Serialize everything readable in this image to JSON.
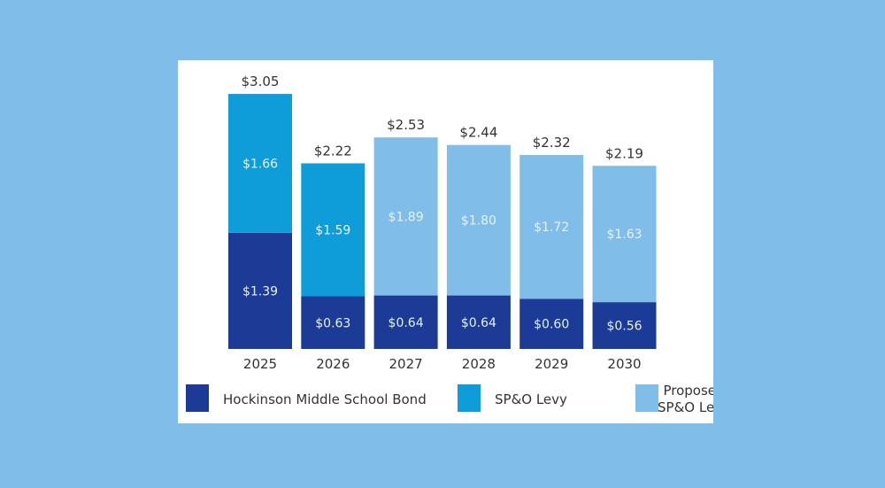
{
  "chart_data": {
    "type": "stacked-bar",
    "categories": [
      "2025",
      "2026",
      "2027",
      "2028",
      "2029",
      "2030"
    ],
    "series": [
      {
        "name": "Hockinson Middle School Bond",
        "color": "#1b3b97",
        "values": [
          1.39,
          0.63,
          0.64,
          0.64,
          0.6,
          0.56
        ],
        "labels": [
          "$1.39",
          "$0.63",
          "$0.64",
          "$0.64",
          "$0.60",
          "$0.56"
        ]
      },
      {
        "name": "SP&O Levy",
        "color": "#0e9dd9",
        "values": [
          1.66,
          1.59,
          null,
          null,
          null,
          null
        ],
        "labels": [
          "$1.66",
          "$1.59",
          "",
          "",
          "",
          ""
        ]
      },
      {
        "name": "Proposed SP&O Levy",
        "name_lines": [
          "Proposed",
          "SP&O Levy"
        ],
        "color": "#80bde8",
        "values": [
          null,
          null,
          1.89,
          1.8,
          1.72,
          1.63
        ],
        "labels": [
          "",
          "",
          "$1.89",
          "$1.80",
          "$1.72",
          "$1.63"
        ]
      }
    ],
    "totals": [
      "$3.05",
      "$2.22",
      "$2.53",
      "$2.44",
      "$2.32",
      "$2.19"
    ],
    "total_values": [
      3.05,
      2.22,
      2.53,
      2.44,
      2.32,
      2.19
    ],
    "grid": false,
    "legend": "bottom",
    "background": "#80bde8"
  }
}
